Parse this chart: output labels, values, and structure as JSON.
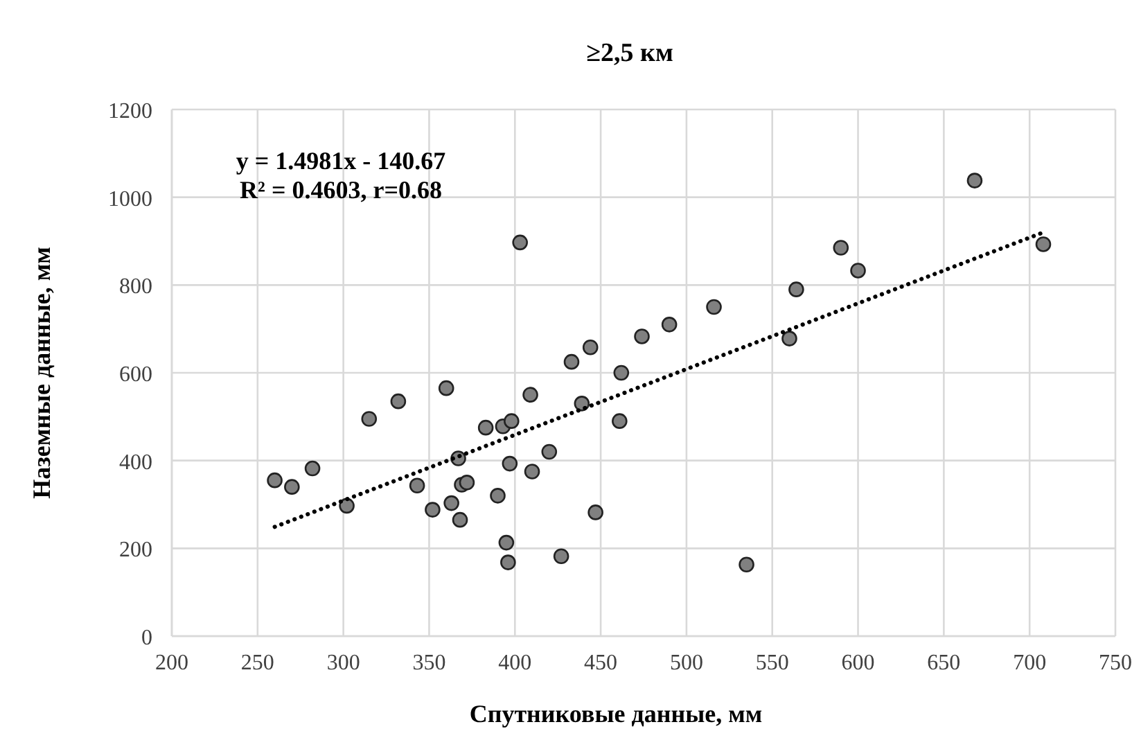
{
  "chart_data": {
    "type": "scatter",
    "title": "≥2,5 км",
    "xlabel": "Спутниковые данные, мм",
    "ylabel": "Наземные данные, мм",
    "annotations": [
      "y = 1.4981x - 140.67",
      "R² = 0.4603, r=0.68"
    ],
    "xlim": [
      200,
      750
    ],
    "xticks": [
      200,
      250,
      300,
      350,
      400,
      450,
      500,
      550,
      600,
      650,
      700,
      750
    ],
    "ylim": [
      0,
      1200
    ],
    "yticks": [
      0,
      200,
      400,
      600,
      800,
      1000,
      1200
    ],
    "grid": true,
    "series": [
      {
        "color": "#808080",
        "marker": "circle",
        "x": [
          260,
          270,
          282,
          302,
          315,
          332,
          343,
          352,
          360,
          363,
          367,
          368,
          369,
          372,
          383,
          390,
          393,
          395,
          396,
          397,
          398,
          403,
          409,
          410,
          420,
          427,
          433,
          439,
          444,
          447,
          461,
          462,
          474,
          490,
          516,
          535,
          560,
          564,
          590,
          600,
          668,
          708
        ],
        "values": [
          355,
          340,
          382,
          297,
          495,
          535,
          343,
          288,
          565,
          303,
          405,
          265,
          345,
          350,
          475,
          320,
          478,
          213,
          168,
          393,
          490,
          897,
          550,
          375,
          420,
          182,
          625,
          530,
          658,
          282,
          490,
          600,
          683,
          710,
          750,
          163,
          678,
          790,
          885,
          833,
          1038,
          893
        ]
      },
      {
        "type": "line",
        "color": "#000000",
        "line_style": "dotted",
        "x": [
          260,
          708
        ],
        "values": [
          249,
          920
        ]
      }
    ]
  }
}
